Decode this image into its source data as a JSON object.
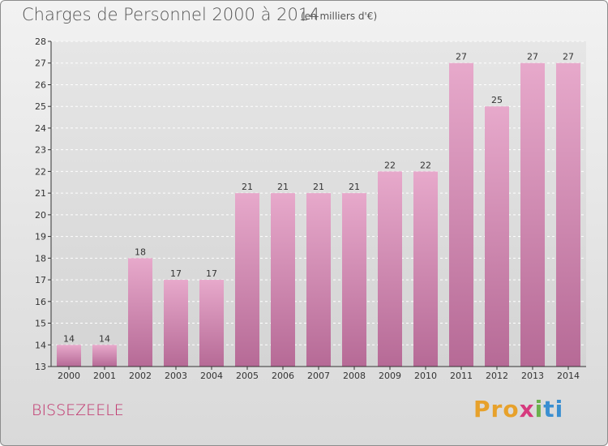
{
  "chart_data": {
    "type": "bar",
    "title": "Charges de Personnel 2000 à 2014",
    "subtitle": "(en milliers d'€)",
    "categories": [
      "2000",
      "2001",
      "2002",
      "2003",
      "2004",
      "2005",
      "2006",
      "2007",
      "2008",
      "2009",
      "2010",
      "2011",
      "2012",
      "2013",
      "2014"
    ],
    "values": [
      14,
      14,
      18,
      17,
      17,
      21,
      21,
      21,
      21,
      22,
      22,
      27,
      25,
      27,
      27
    ],
    "ylim": [
      13,
      28
    ],
    "yticks": [
      13,
      14,
      15,
      16,
      17,
      18,
      19,
      20,
      21,
      22,
      23,
      24,
      25,
      26,
      27,
      28
    ],
    "grid": true,
    "bar_color": "#d98fb8"
  },
  "commune": "BISSEZEELE",
  "logo": {
    "p1": "Pro",
    "p2": "x",
    "p3": "i",
    "p4": "ti"
  }
}
